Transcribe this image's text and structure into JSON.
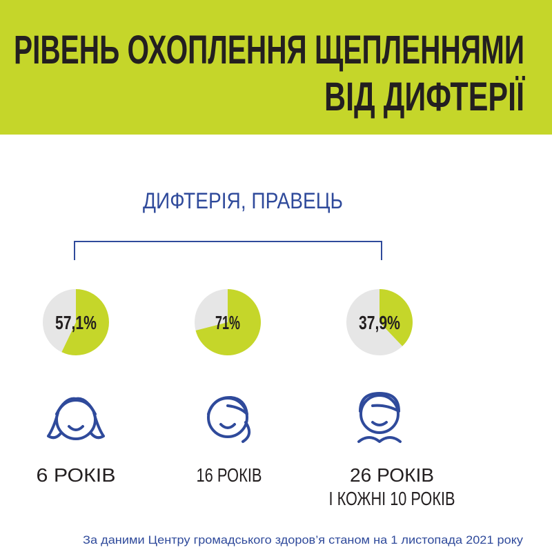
{
  "header": {
    "title": [
      "РІВЕНЬ ОХОПЛЕННЯ ЩЕПЛЕННЯМИ",
      "ВІД ДИФТЕРІЇ"
    ]
  },
  "subtitle": "ДИФТЕРІЯ, ПРАВЕЦЬ",
  "chart_data": [
    {
      "type": "pie",
      "values": [
        57.1,
        42.9
      ],
      "value_labels": [
        "57,1%",
        null
      ],
      "colors": [
        "#c5d62a",
        "#e6e6e6"
      ],
      "caption": [
        "6 РОКІВ"
      ]
    },
    {
      "type": "pie",
      "values": [
        71,
        29
      ],
      "value_labels": [
        "71%",
        null
      ],
      "colors": [
        "#c5d62a",
        "#e6e6e6"
      ],
      "caption": [
        "16 РОКІВ"
      ]
    },
    {
      "type": "pie",
      "values": [
        37.9,
        62.1
      ],
      "value_labels": [
        "37,9%",
        null
      ],
      "colors": [
        "#c5d62a",
        "#e6e6e6"
      ],
      "caption": [
        "26 РОКІВ",
        "І КОЖНІ 10 РОКІВ"
      ]
    }
  ],
  "source": "За даними Центру громадського здоров’я станом на 1 листопада 2021 року"
}
